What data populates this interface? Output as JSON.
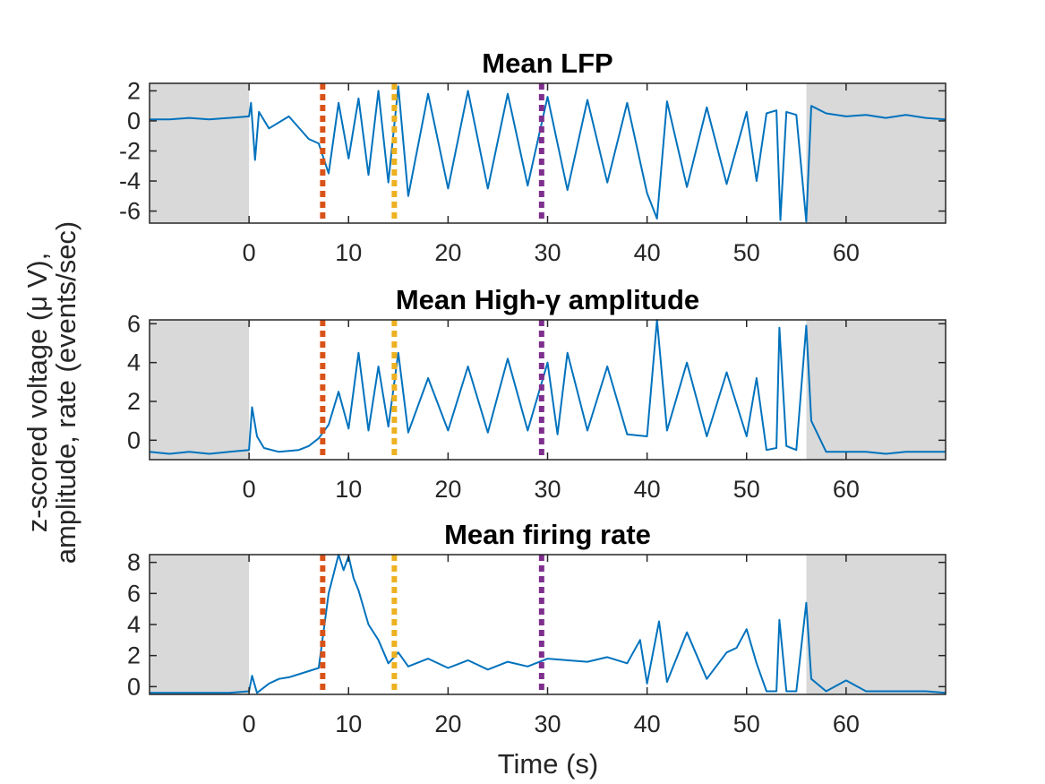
{
  "figure": {
    "ylabel_line1": "z-scored voltage (μ V),",
    "ylabel_line2": "amplitude, rate (events/sec)",
    "xlabel": "Time (s)"
  },
  "colors": {
    "signal": "#0072bd",
    "shade": "#d9d9d9",
    "marker_orange": "#d95319",
    "marker_yellow": "#edb120",
    "marker_purple": "#7e2f8e"
  },
  "chart_data": [
    {
      "type": "line",
      "title": "Mean LFP",
      "xlim": [
        -10,
        70
      ],
      "ylim": [
        -6.8,
        2.5
      ],
      "xticks": [
        0,
        10,
        20,
        30,
        40,
        50,
        60
      ],
      "xtick_labels": [
        "0",
        "10",
        "20",
        "30",
        "40",
        "50",
        "60"
      ],
      "yticks": [
        2,
        0,
        -2,
        -4,
        -6
      ],
      "ytick_labels": [
        "2",
        "0",
        "-2",
        "-4",
        "-6"
      ],
      "shaded_x": [
        [
          -10,
          0
        ],
        [
          56,
          70
        ]
      ],
      "markers": [
        {
          "x": 7.4,
          "color": "#d95319"
        },
        {
          "x": 14.6,
          "color": "#edb120"
        },
        {
          "x": 29.4,
          "color": "#7e2f8e"
        }
      ],
      "series": [
        {
          "x": [
            -10,
            -8,
            -6,
            -4,
            -2,
            0,
            0.2,
            0.6,
            1,
            2,
            4,
            6,
            7,
            8,
            9,
            10,
            11,
            12,
            13,
            14,
            15,
            16,
            18,
            20,
            22,
            24,
            26,
            28,
            30,
            32,
            34,
            36,
            38,
            40,
            41,
            42,
            44,
            46,
            48,
            50,
            51,
            52,
            53,
            53.4,
            54,
            55,
            56,
            56.5,
            58,
            60,
            62,
            64,
            66,
            68,
            70
          ],
          "y": [
            0.1,
            0.1,
            0.2,
            0.1,
            0.2,
            0.3,
            1.2,
            -2.6,
            0.6,
            -0.5,
            0.3,
            -1.2,
            -1.5,
            -3.5,
            1.2,
            -2.5,
            1.5,
            -3.6,
            2.0,
            -4.1,
            2.3,
            -5.0,
            1.8,
            -4.5,
            2.0,
            -4.5,
            1.8,
            -4.3,
            1.6,
            -4.6,
            1.4,
            -4.1,
            1.2,
            -4.8,
            -6.5,
            1.3,
            -4.4,
            0.9,
            -4.2,
            0.6,
            -4.0,
            0.5,
            0.7,
            -6.6,
            0.6,
            0.4,
            -6.7,
            1.0,
            0.5,
            0.3,
            0.4,
            0.2,
            0.4,
            0.2,
            0.1
          ]
        }
      ]
    },
    {
      "type": "line",
      "title": "Mean High-γ amplitude",
      "xlim": [
        -10,
        70
      ],
      "ylim": [
        -1,
        6.2
      ],
      "xticks": [
        0,
        10,
        20,
        30,
        40,
        50,
        60
      ],
      "xtick_labels": [
        "0",
        "10",
        "20",
        "30",
        "40",
        "50",
        "60"
      ],
      "yticks": [
        6,
        4,
        2,
        0
      ],
      "ytick_labels": [
        "6",
        "4",
        "2",
        "0"
      ],
      "shaded_x": [
        [
          -10,
          0
        ],
        [
          56,
          70
        ]
      ],
      "markers": [
        {
          "x": 7.4,
          "color": "#d95319"
        },
        {
          "x": 14.6,
          "color": "#edb120"
        },
        {
          "x": 29.4,
          "color": "#7e2f8e"
        }
      ],
      "series": [
        {
          "x": [
            -10,
            -8,
            -6,
            -4,
            -2,
            0,
            0.3,
            0.8,
            1.5,
            3,
            5,
            6,
            7,
            8,
            9,
            10,
            11,
            12,
            13,
            14,
            15,
            16,
            18,
            20,
            22,
            24,
            26,
            28,
            30,
            31,
            32,
            34,
            36,
            38,
            40,
            41,
            42,
            44,
            46,
            48,
            50,
            51,
            52,
            53,
            53.3,
            54,
            55,
            56,
            56.5,
            58,
            60,
            62,
            64,
            66,
            68,
            70
          ],
          "y": [
            -0.6,
            -0.7,
            -0.6,
            -0.7,
            -0.6,
            -0.5,
            1.7,
            0.2,
            -0.4,
            -0.6,
            -0.5,
            -0.3,
            0.1,
            0.8,
            2.5,
            0.6,
            4.5,
            0.5,
            3.8,
            0.7,
            4.5,
            0.4,
            3.2,
            0.5,
            3.8,
            0.4,
            4.2,
            0.5,
            4.0,
            0.3,
            4.5,
            0.5,
            3.8,
            0.3,
            0.2,
            6.2,
            0.5,
            4.0,
            0.2,
            3.5,
            0.2,
            3.2,
            -0.5,
            -0.4,
            5.8,
            -0.3,
            -0.5,
            5.9,
            1.0,
            -0.6,
            -0.6,
            -0.6,
            -0.7,
            -0.6,
            -0.6,
            -0.6
          ]
        }
      ]
    },
    {
      "type": "line",
      "title": "Mean firing rate",
      "xlim": [
        -10,
        70
      ],
      "ylim": [
        -0.5,
        8.5
      ],
      "xticks": [
        0,
        10,
        20,
        30,
        40,
        50,
        60
      ],
      "xtick_labels": [
        "0",
        "10",
        "20",
        "30",
        "40",
        "50",
        "60"
      ],
      "yticks": [
        8,
        6,
        4,
        2,
        0
      ],
      "ytick_labels": [
        "8",
        "6",
        "4",
        "2",
        "0"
      ],
      "shaded_x": [
        [
          -10,
          0
        ],
        [
          56,
          70
        ]
      ],
      "markers": [
        {
          "x": 7.4,
          "color": "#d95319"
        },
        {
          "x": 14.6,
          "color": "#edb120"
        },
        {
          "x": 29.4,
          "color": "#7e2f8e"
        }
      ],
      "series": [
        {
          "x": [
            -10,
            -8,
            -6,
            -4,
            -2,
            0,
            0.3,
            0.8,
            2,
            3,
            4,
            5,
            6,
            7,
            8,
            9,
            9.5,
            10,
            10.5,
            11,
            12,
            13,
            14,
            15,
            16,
            18,
            20,
            22,
            24,
            26,
            28,
            30,
            32,
            34,
            36,
            38,
            39.3,
            40,
            41.2,
            42,
            44,
            46,
            48,
            49,
            50,
            51,
            52,
            53,
            53.3,
            54,
            55,
            56,
            56.5,
            58,
            60,
            62,
            64,
            66,
            68,
            70
          ],
          "y": [
            -0.4,
            -0.4,
            -0.4,
            -0.4,
            -0.4,
            -0.3,
            0.7,
            -0.4,
            0.2,
            0.5,
            0.6,
            0.8,
            1.0,
            1.2,
            6.0,
            8.5,
            7.5,
            8.4,
            7.0,
            6.2,
            4.0,
            3.0,
            1.5,
            2.2,
            1.3,
            1.8,
            1.2,
            1.7,
            1.1,
            1.6,
            1.3,
            1.8,
            1.7,
            1.6,
            1.9,
            1.5,
            3.0,
            0.2,
            4.2,
            0.3,
            3.5,
            0.5,
            2.2,
            2.5,
            3.7,
            1.5,
            -0.3,
            -0.3,
            4.3,
            -0.3,
            -0.3,
            5.4,
            0.5,
            -0.3,
            0.4,
            -0.3,
            -0.3,
            -0.3,
            -0.3,
            -0.4
          ]
        }
      ]
    }
  ]
}
